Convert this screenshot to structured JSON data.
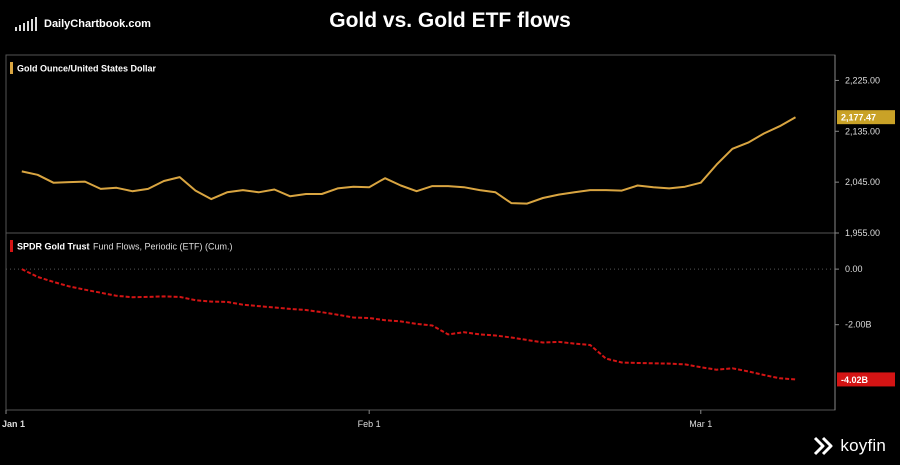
{
  "header": {
    "brand": "DailyChartbook.com",
    "title": "Gold vs. Gold ETF flows",
    "footer_brand": "koyfin"
  },
  "colors": {
    "gold": "#d9a541",
    "gold_badge": "#c9a227",
    "red": "#d41414",
    "grid": "#3a3a3a"
  },
  "chart_data": [
    {
      "type": "line",
      "legend": "Gold Ounce/United States Dollar",
      "ylim": [
        1955,
        2270
      ],
      "yticks": [
        {
          "v": 2225,
          "label": "2,225.00"
        },
        {
          "v": 2135,
          "label": "2,135.00"
        },
        {
          "v": 2045,
          "label": "2,045.00"
        },
        {
          "v": 1955,
          "label": "1,955.00"
        }
      ],
      "last_label": "2,177.47",
      "x": [
        1,
        2,
        3,
        4,
        5,
        6,
        7,
        8,
        9,
        10,
        11,
        12,
        13,
        14,
        15,
        16,
        17,
        18,
        19,
        20,
        21,
        22,
        23,
        24,
        25,
        26,
        27,
        28,
        29,
        30,
        31,
        32,
        33,
        34,
        35,
        36,
        37,
        38,
        39,
        40,
        41,
        42,
        43,
        44,
        45,
        46,
        47,
        48,
        49,
        50
      ],
      "values": [
        2064,
        2058,
        2044,
        2045,
        2046,
        2033,
        2035,
        2029,
        2033,
        2047,
        2054,
        2030,
        2015,
        2027,
        2031,
        2027,
        2032,
        2020,
        2024,
        2024,
        2034,
        2037,
        2036,
        2052,
        2039,
        2029,
        2038,
        2038,
        2036,
        2031,
        2027,
        2008,
        2007,
        2017,
        2023,
        2027,
        2031,
        2031,
        2030,
        2039,
        2036,
        2034,
        2037,
        2044,
        2076,
        2104,
        2115,
        2131,
        2144,
        2160
      ]
    },
    {
      "type": "line",
      "legend_name": "SPDR Gold Trust",
      "legend_desc": "Fund Flows, Periodic (ETF) (Cum.)",
      "ylim": [
        -5.07,
        1.3
      ],
      "yticks": [
        {
          "v": 0,
          "label": "0.00"
        },
        {
          "v": -2,
          "label": "-2.00B"
        }
      ],
      "last_label": "-4.02B",
      "x": [
        1,
        2,
        3,
        4,
        5,
        6,
        7,
        8,
        9,
        10,
        11,
        12,
        13,
        14,
        15,
        16,
        17,
        18,
        19,
        20,
        21,
        22,
        23,
        24,
        25,
        26,
        27,
        28,
        29,
        30,
        31,
        32,
        33,
        34,
        35,
        36,
        37,
        38,
        39,
        40,
        41,
        42,
        43,
        44,
        45,
        46,
        47,
        48,
        49,
        50
      ],
      "values": [
        0.0,
        -0.28,
        -0.46,
        -0.62,
        -0.74,
        -0.85,
        -0.96,
        -1.01,
        -1.0,
        -0.98,
        -1.0,
        -1.12,
        -1.17,
        -1.18,
        -1.28,
        -1.33,
        -1.38,
        -1.43,
        -1.47,
        -1.55,
        -1.64,
        -1.74,
        -1.76,
        -1.84,
        -1.88,
        -1.97,
        -2.03,
        -2.35,
        -2.27,
        -2.35,
        -2.39,
        -2.46,
        -2.55,
        -2.64,
        -2.62,
        -2.68,
        -2.73,
        -3.22,
        -3.36,
        -3.38,
        -3.39,
        -3.4,
        -3.43,
        -3.53,
        -3.62,
        -3.57,
        -3.68,
        -3.81,
        -3.93,
        -3.97
      ]
    }
  ],
  "x_axis": {
    "ticks": [
      {
        "x": 0,
        "label": "Jan 1"
      },
      {
        "x": 23,
        "label": "Feb 1"
      },
      {
        "x": 44,
        "label": "Mar 1"
      }
    ],
    "range": [
      0,
      52.5
    ]
  }
}
